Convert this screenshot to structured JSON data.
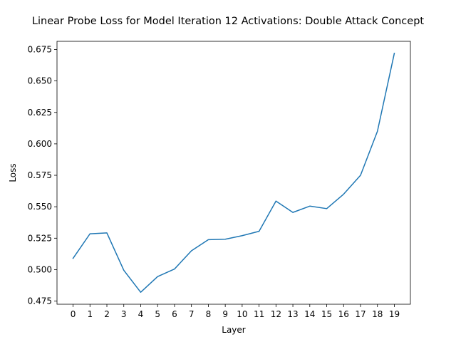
{
  "chart_data": {
    "type": "line",
    "title": "Linear Probe Loss for Model Iteration 12 Activations: Double Attack Concept",
    "xlabel": "Layer",
    "ylabel": "Loss",
    "x": [
      0,
      1,
      2,
      3,
      4,
      5,
      6,
      7,
      8,
      9,
      10,
      11,
      12,
      13,
      14,
      15,
      16,
      17,
      18,
      19
    ],
    "xticks": [
      "0",
      "1",
      "2",
      "3",
      "4",
      "5",
      "6",
      "7",
      "8",
      "9",
      "10",
      "11",
      "12",
      "13",
      "14",
      "15",
      "16",
      "17",
      "18",
      "19"
    ],
    "yticks": [
      "0.475",
      "0.500",
      "0.525",
      "0.550",
      "0.575",
      "0.600",
      "0.625",
      "0.650",
      "0.675"
    ],
    "ytick_values": [
      0.475,
      0.5,
      0.525,
      0.55,
      0.575,
      0.6,
      0.625,
      0.65,
      0.675
    ],
    "xlim": [
      -0.95,
      19.95
    ],
    "ylim": [
      0.4725,
      0.6815
    ],
    "series": [
      {
        "values": [
          0.509,
          0.5285,
          0.5292,
          0.4995,
          0.482,
          0.4945,
          0.5005,
          0.515,
          0.5238,
          0.5242,
          0.527,
          0.5305,
          0.5545,
          0.5455,
          0.5505,
          0.5485,
          0.56,
          0.575,
          0.61,
          0.672
        ],
        "color": "#1f77b4"
      }
    ],
    "grid": false,
    "legend": "none"
  }
}
